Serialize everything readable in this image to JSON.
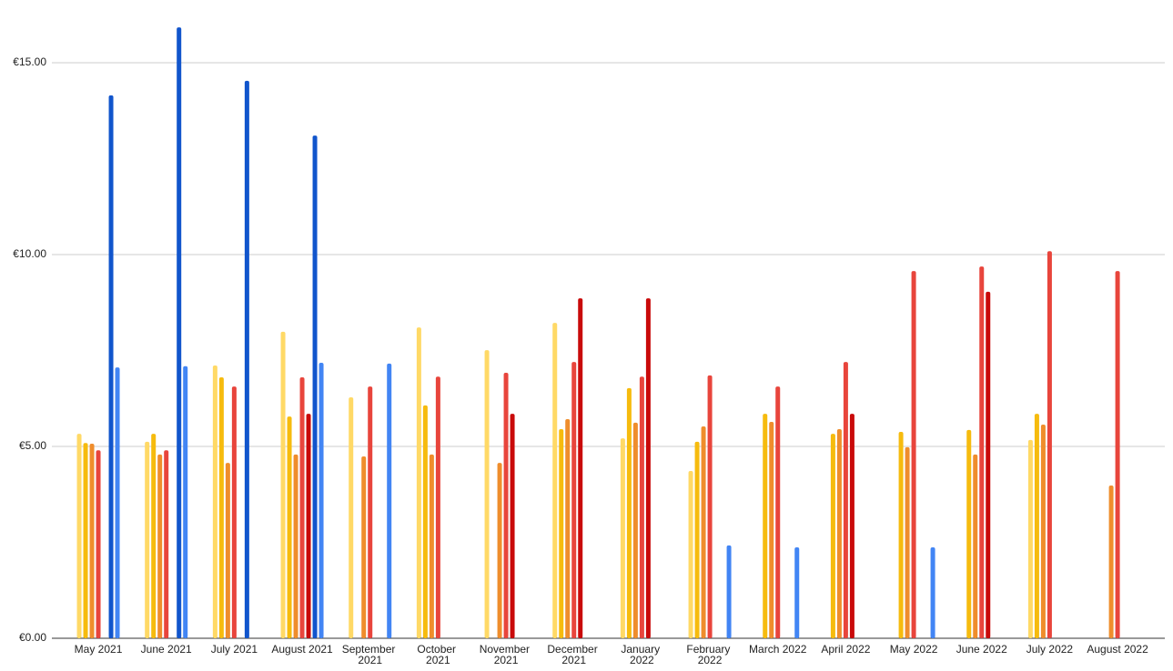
{
  "chart_data": {
    "type": "bar",
    "categories": [
      "May 2021",
      "June 2021",
      "July 2021",
      "August 2021",
      "September 2021",
      "October 2021",
      "November 2021",
      "December 2021",
      "January 2022",
      "February 2022",
      "March 2022",
      "April 2022",
      "May 2022",
      "June 2022",
      "July 2022",
      "August 2022"
    ],
    "series": [
      {
        "color": "#ffd966",
        "values": [
          5.33,
          5.12,
          7.11,
          7.99,
          6.28,
          8.1,
          7.51,
          8.22,
          5.21,
          4.36,
          null,
          null,
          null,
          null,
          5.17,
          null
        ]
      },
      {
        "color": "#f6bb0e",
        "values": [
          5.09,
          5.33,
          6.8,
          5.78,
          null,
          6.07,
          null,
          5.45,
          6.52,
          5.12,
          5.85,
          5.33,
          5.38,
          5.43,
          5.85,
          null
        ]
      },
      {
        "color": "#ef8d2c",
        "values": [
          5.07,
          4.79,
          4.57,
          4.79,
          4.74,
          4.79,
          4.57,
          5.71,
          5.62,
          5.52,
          5.64,
          5.45,
          4.98,
          4.79,
          5.57,
          3.98
        ]
      },
      {
        "color": "#e8453c",
        "values": [
          4.9,
          4.9,
          6.56,
          6.8,
          6.56,
          6.82,
          6.92,
          7.2,
          6.82,
          6.85,
          6.56,
          7.2,
          9.57,
          9.69,
          10.09,
          9.57
        ]
      },
      {
        "color": "#c90a0a",
        "values": [
          null,
          null,
          null,
          5.85,
          null,
          null,
          5.85,
          8.86,
          8.86,
          null,
          null,
          5.85,
          null,
          9.03,
          null,
          null
        ]
      },
      {
        "color": "#1155cc",
        "values": [
          14.15,
          15.92,
          14.53,
          13.1,
          null,
          null,
          null,
          null,
          null,
          null,
          null,
          null,
          null,
          null,
          null,
          null
        ]
      },
      {
        "color": "#4285f4",
        "values": [
          7.06,
          7.09,
          null,
          7.18,
          7.16,
          null,
          null,
          null,
          null,
          2.42,
          2.37,
          null,
          2.37,
          null,
          null,
          null
        ]
      }
    ],
    "ylim": [
      0,
      16.5
    ],
    "yticks": [
      {
        "value": 0,
        "label": "€0.00"
      },
      {
        "value": 5,
        "label": "€5.00"
      },
      {
        "value": 10,
        "label": "€10.00"
      },
      {
        "value": 15,
        "label": "€15.00"
      }
    ],
    "grid": true
  }
}
